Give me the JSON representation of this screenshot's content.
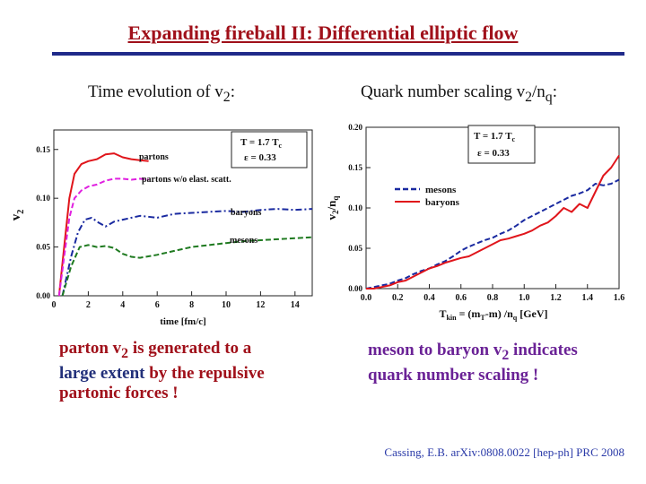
{
  "slide": {
    "title": "Expanding fireball II: Differential elliptic flow",
    "left_subtitle": "Time evolution of v",
    "left_subtitle_sub": "2",
    "left_subtitle_end": ":",
    "right_subtitle": "Quark number scaling v",
    "right_subtitle_sub1": "2",
    "right_subtitle_mid": "/n",
    "right_subtitle_sub2": "q",
    "right_subtitle_end": ":",
    "left_note_a": "parton v",
    "left_note_sub": "2",
    "left_note_b": " is generated to a",
    "left_note_c": "large extent",
    "left_note_d": " by the repulsive",
    "left_note_e": "partonic forces !",
    "right_note_line1": "meson to baryon v",
    "right_note_sub": "2",
    "right_note_line1_end": " indicates",
    "right_note_line2": "quark number scaling !",
    "citation": "Cassing, E.B. arXiv:0808.0022 [hep-ph] PRC 2008",
    "colors": {
      "title": "#a0101a",
      "rule": "#1f2a8a",
      "note_left": "#a0101a",
      "note_right": "#6a2296"
    }
  },
  "chart_data": [
    {
      "type": "line",
      "xlabel": "time [fm/c]",
      "ylabel_main": "v",
      "ylabel_sub": "2",
      "xlim": [
        0,
        15
      ],
      "ylim": [
        0,
        0.17
      ],
      "xticks": [
        "0",
        "2",
        "4",
        "6",
        "8",
        "10",
        "12",
        "14"
      ],
      "yticks": [
        "0.00",
        "0.05",
        "0.10",
        "0.15"
      ],
      "box_line1_a": "T = 1.7 T",
      "box_line1_sub": "c",
      "box_line2": "ε = 0.33",
      "series": [
        {
          "name": "partons",
          "color": "#e0151b",
          "dash": "solid",
          "x": [
            0.3,
            0.6,
            0.9,
            1.2,
            1.6,
            2.0,
            2.5,
            3.0,
            3.5,
            4.0,
            4.5,
            5.0,
            5.5
          ],
          "y": [
            0.0,
            0.05,
            0.1,
            0.125,
            0.135,
            0.138,
            0.14,
            0.145,
            0.146,
            0.142,
            0.14,
            0.139,
            0.138
          ]
        },
        {
          "name": "partons w/o elast. scatt.",
          "color": "#e020e0",
          "dash": "dash",
          "x": [
            0.3,
            0.6,
            0.9,
            1.2,
            1.6,
            2.0,
            2.5,
            3.0,
            3.5,
            4.0,
            4.5,
            5.0,
            5.5
          ],
          "y": [
            0.0,
            0.04,
            0.08,
            0.1,
            0.108,
            0.112,
            0.114,
            0.118,
            0.12,
            0.12,
            0.119,
            0.12,
            0.119
          ]
        },
        {
          "name": "baryons",
          "color": "#1a2aa0",
          "dash": "dashdot",
          "x": [
            0.5,
            1.0,
            1.4,
            1.8,
            2.2,
            2.6,
            3.0,
            3.5,
            4.0,
            5.0,
            6.0,
            7.0,
            8.0,
            9.0,
            10.0,
            11.0,
            12.0,
            13.0,
            14.0,
            15.0
          ],
          "y": [
            0.0,
            0.04,
            0.065,
            0.078,
            0.08,
            0.075,
            0.071,
            0.076,
            0.078,
            0.082,
            0.08,
            0.084,
            0.085,
            0.086,
            0.087,
            0.086,
            0.088,
            0.089,
            0.088,
            0.089
          ]
        },
        {
          "name": "mesons",
          "color": "#1f7a20",
          "dash": "dash",
          "x": [
            0.5,
            1.0,
            1.5,
            2.0,
            2.5,
            3.0,
            3.5,
            4.0,
            4.5,
            5.0,
            6.0,
            7.0,
            8.0,
            9.0,
            10.0,
            11.0,
            12.0,
            13.0,
            14.0,
            15.0
          ],
          "y": [
            0.0,
            0.03,
            0.05,
            0.052,
            0.05,
            0.051,
            0.049,
            0.043,
            0.04,
            0.039,
            0.042,
            0.046,
            0.05,
            0.052,
            0.054,
            0.056,
            0.057,
            0.058,
            0.059,
            0.06
          ]
        }
      ]
    },
    {
      "type": "line",
      "xlabel_a": "T",
      "xlabel_sub1": "kin",
      "xlabel_b": " = (m",
      "xlabel_sub2": "T",
      "xlabel_c": "-m) /n",
      "xlabel_sub3": "q",
      "xlabel_d": "  [GeV]",
      "ylabel_a": "v",
      "ylabel_sub1": "2",
      "ylabel_b": "/n",
      "ylabel_sub2": "q",
      "xlim": [
        0,
        1.6
      ],
      "ylim": [
        0,
        0.2
      ],
      "xticks": [
        "0.0",
        "0.2",
        "0.4",
        "0.6",
        "0.8",
        "1.0",
        "1.2",
        "1.4",
        "1.6"
      ],
      "yticks": [
        "0.00",
        "0.05",
        "0.10",
        "0.15",
        "0.20"
      ],
      "box_line1_a": "T = 1.7 T",
      "box_line1_sub": "c",
      "box_line2": "ε = 0.33",
      "series": [
        {
          "name": "mesons",
          "color": "#1a2aa0",
          "dash": "dash",
          "x": [
            0.0,
            0.05,
            0.1,
            0.15,
            0.2,
            0.25,
            0.3,
            0.35,
            0.4,
            0.45,
            0.5,
            0.55,
            0.6,
            0.65,
            0.7,
            0.75,
            0.8,
            0.85,
            0.9,
            0.95,
            1.0,
            1.05,
            1.1,
            1.15,
            1.2,
            1.25,
            1.3,
            1.35,
            1.4,
            1.45,
            1.5,
            1.55,
            1.6
          ],
          "y": [
            0.0,
            0.002,
            0.004,
            0.006,
            0.01,
            0.013,
            0.018,
            0.022,
            0.025,
            0.03,
            0.034,
            0.04,
            0.047,
            0.052,
            0.056,
            0.06,
            0.063,
            0.068,
            0.072,
            0.078,
            0.085,
            0.09,
            0.095,
            0.1,
            0.105,
            0.11,
            0.115,
            0.118,
            0.122,
            0.13,
            0.128,
            0.13,
            0.135
          ]
        },
        {
          "name": "baryons",
          "color": "#e0151b",
          "dash": "solid",
          "x": [
            0.0,
            0.05,
            0.1,
            0.15,
            0.2,
            0.25,
            0.3,
            0.35,
            0.4,
            0.45,
            0.5,
            0.55,
            0.6,
            0.65,
            0.7,
            0.75,
            0.8,
            0.85,
            0.9,
            0.95,
            1.0,
            1.05,
            1.1,
            1.15,
            1.2,
            1.25,
            1.3,
            1.35,
            1.4,
            1.45,
            1.5,
            1.55,
            1.6
          ],
          "y": [
            0.0,
            0.0,
            0.002,
            0.004,
            0.008,
            0.01,
            0.015,
            0.02,
            0.025,
            0.028,
            0.032,
            0.035,
            0.038,
            0.04,
            0.045,
            0.05,
            0.055,
            0.06,
            0.062,
            0.065,
            0.068,
            0.072,
            0.078,
            0.082,
            0.09,
            0.1,
            0.095,
            0.105,
            0.1,
            0.12,
            0.14,
            0.15,
            0.165
          ]
        }
      ]
    }
  ]
}
